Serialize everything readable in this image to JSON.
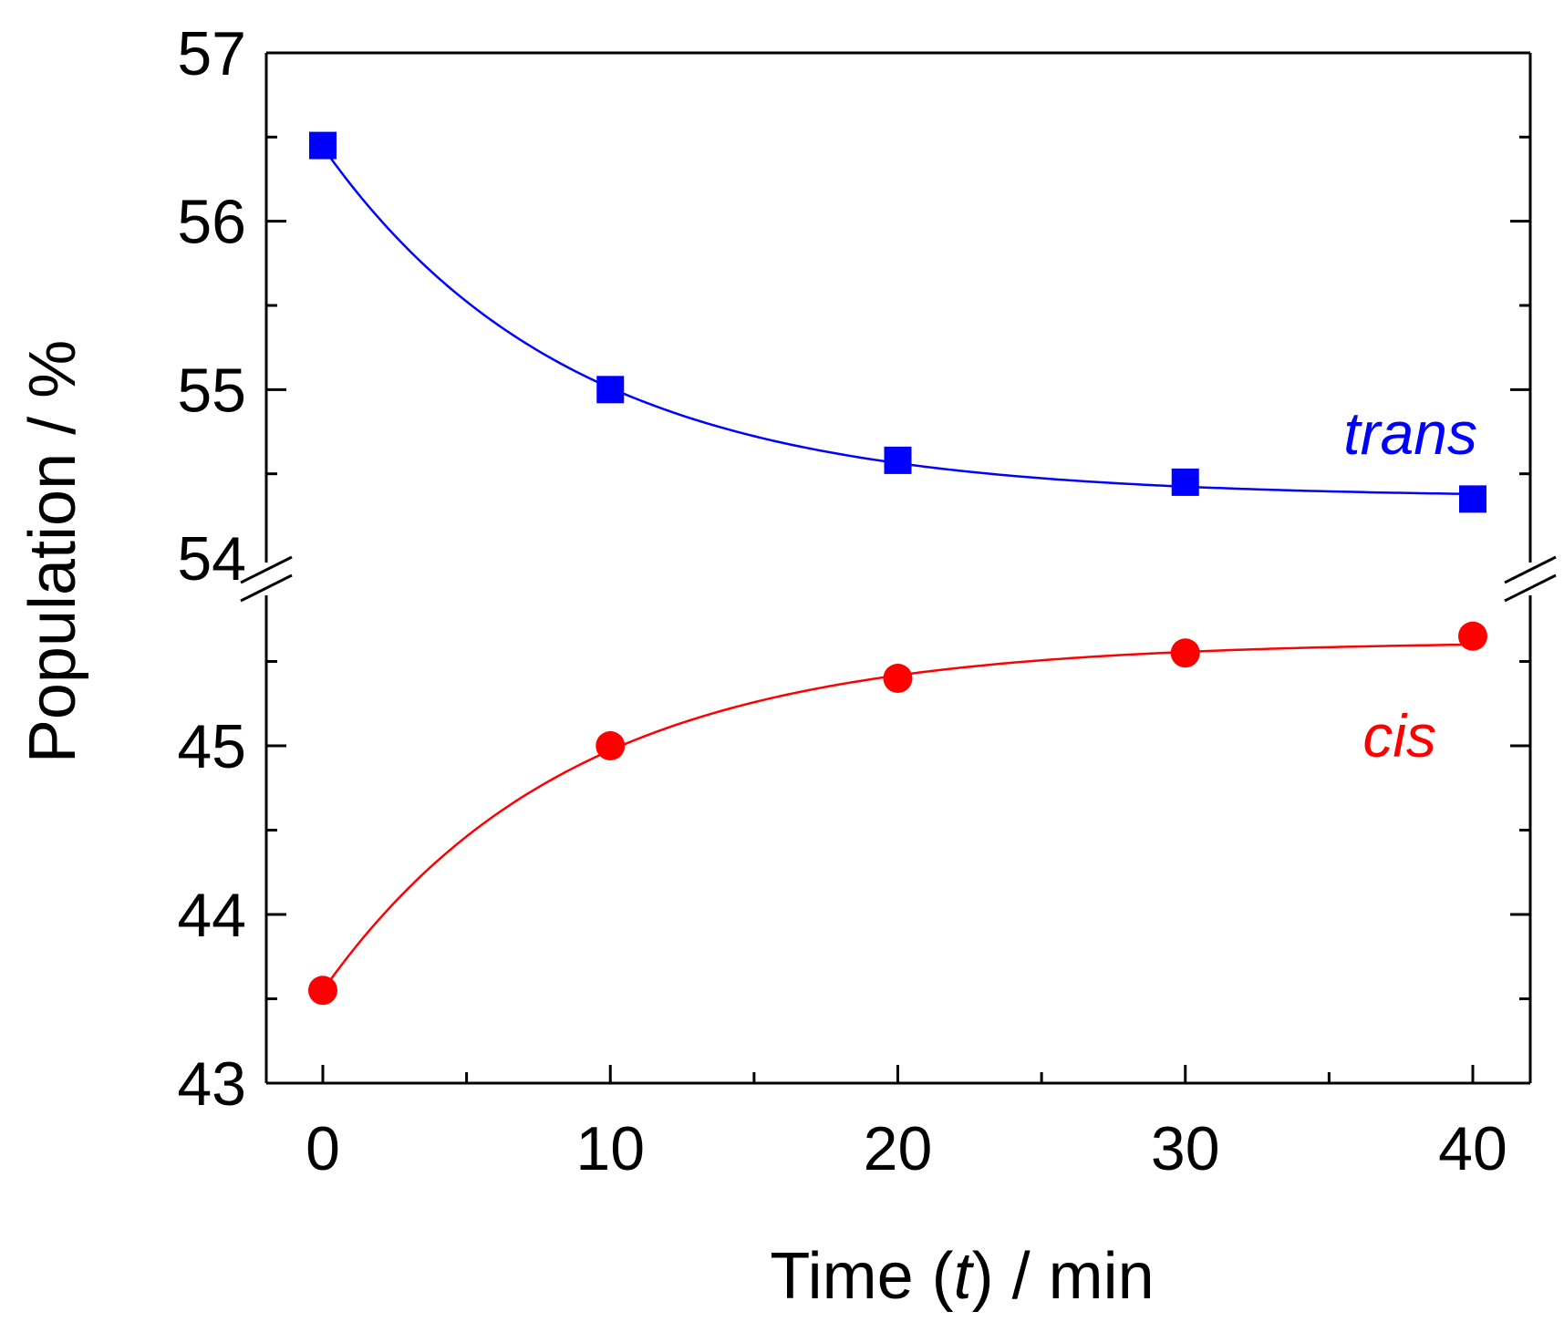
{
  "chart_data": {
    "type": "scatter",
    "xlabel": {
      "prefix": "Time (",
      "var": "t",
      "suffix": ") / min"
    },
    "ylabel": "Population / %",
    "xlim": [
      -2,
      42
    ],
    "x_ticks": [
      0,
      10,
      20,
      30,
      40
    ],
    "x_tick_labels": [
      "0",
      "10",
      "20",
      "30",
      "40"
    ],
    "y_break": {
      "lower_range": [
        43,
        46
      ],
      "upper_range": [
        54,
        57
      ]
    },
    "y_ticks_upper": [
      54,
      55,
      56,
      57
    ],
    "y_ticks_lower": [
      43,
      44,
      45
    ],
    "y_tick_labels_upper": [
      "54",
      "55",
      "56",
      "57"
    ],
    "y_tick_labels_lower": [
      "43",
      "44",
      "45"
    ],
    "series": [
      {
        "name": "trans",
        "label": "trans",
        "color": "#0000ff",
        "marker": "square",
        "segment": "upper",
        "x": [
          0,
          10,
          20,
          30,
          40
        ],
        "values": [
          56.45,
          55.0,
          54.58,
          54.45,
          54.35
        ],
        "fit": {
          "model": "exponential_decay",
          "y_inf": 54.36,
          "amplitude": 2.08,
          "tau": 8.6
        }
      },
      {
        "name": "cis",
        "label": "cis",
        "color": "#ff0000",
        "marker": "circle",
        "segment": "lower",
        "x": [
          0,
          10,
          20,
          30,
          40
        ],
        "values": [
          43.55,
          45.0,
          45.4,
          45.55,
          45.65
        ],
        "fit": {
          "model": "exponential_rise",
          "y_inf": 45.62,
          "amplitude": 2.07,
          "tau": 8.6
        }
      }
    ]
  }
}
